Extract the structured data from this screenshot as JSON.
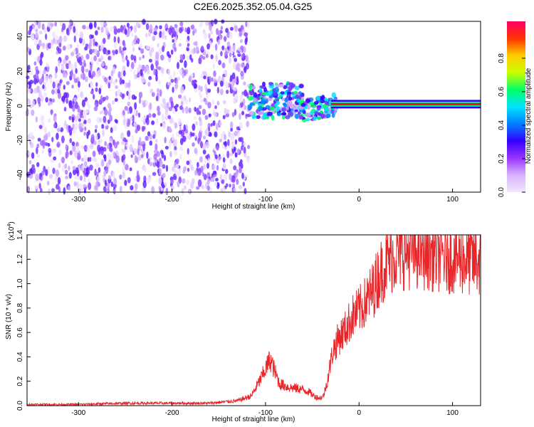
{
  "chart_data": [
    {
      "type": "heatmap",
      "title": "C2E6.2025.352.05.04.G25",
      "xlabel": "Height of straight line (km)",
      "ylabel": "Frequency (Hz)",
      "xlim": [
        -355,
        130
      ],
      "ylim": [
        -50,
        49
      ],
      "xticks": [
        -300,
        -200,
        -100,
        0,
        100
      ],
      "yticks": [
        -40,
        -20,
        0,
        20,
        40
      ],
      "colorbar": {
        "label": "Normalized spectral amplitude",
        "range": [
          0,
          1
        ],
        "ticks": [
          "0.0",
          "0.2",
          "0.4",
          "0.6",
          "0.8"
        ],
        "stops": [
          "#f2e6ff",
          "#d9b3ff",
          "#9933ff",
          "#3300ff",
          "#0080ff",
          "#00e5ff",
          "#00ff66",
          "#ccff00",
          "#ffcc00",
          "#ff3300",
          "#ff0066"
        ]
      },
      "features": {
        "noise_region_km": [
          -355,
          -118
        ],
        "signal_band_hz": [
          0,
          2
        ],
        "transition_region_km": [
          -118,
          -25
        ]
      }
    },
    {
      "type": "line",
      "xlabel": "Height of straight line (km)",
      "ylabel": "SNR (10 * v/v)",
      "y_multiplier": "(x10",
      "y_exponent": "4",
      "xlim": [
        -355,
        130
      ],
      "ylim": [
        0,
        1.4
      ],
      "xticks": [
        -300,
        -200,
        -100,
        0,
        100
      ],
      "yticks": [
        "0.0",
        "0.2",
        "0.4",
        "0.6",
        "0.8",
        "1.0",
        "1.2",
        "1.4"
      ],
      "series": [
        {
          "name": "SNR",
          "color": "#e8262a",
          "x": [
            -355,
            -300,
            -250,
            -200,
            -160,
            -130,
            -115,
            -105,
            -95,
            -85,
            -75,
            -65,
            -55,
            -48,
            -42,
            -38,
            -34,
            -28,
            -22,
            -15,
            -8,
            0,
            8,
            15,
            22,
            30,
            40,
            55,
            70,
            85,
            100,
            115,
            130
          ],
          "y": [
            0.01,
            0.01,
            0.02,
            0.02,
            0.02,
            0.04,
            0.08,
            0.22,
            0.38,
            0.18,
            0.15,
            0.14,
            0.12,
            0.08,
            0.06,
            0.08,
            0.2,
            0.45,
            0.55,
            0.62,
            0.72,
            0.78,
            0.86,
            0.95,
            1.08,
            1.18,
            1.25,
            1.27,
            1.26,
            1.24,
            1.22,
            1.2,
            1.18
          ]
        }
      ]
    }
  ]
}
